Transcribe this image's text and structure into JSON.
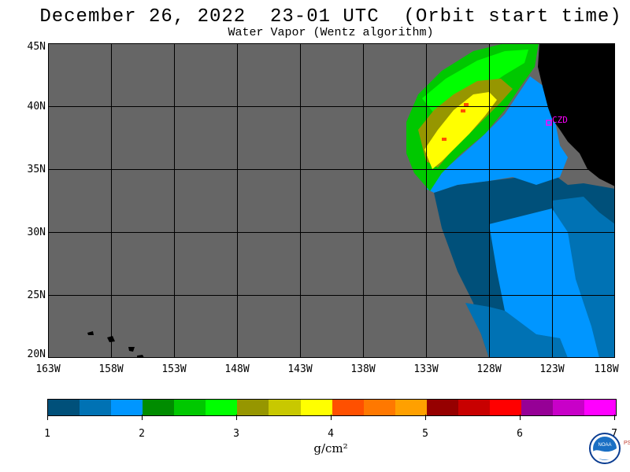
{
  "title": "December 26, 2022  23-01 UTC  (Orbit start time)",
  "subtitle": "Water Vapor (Wentz algorithm)",
  "map": {
    "lat_labels": [
      "45N",
      "40N",
      "35N",
      "30N",
      "25N",
      "20N"
    ],
    "lon_labels": [
      "163W",
      "158W",
      "153W",
      "148W",
      "143W",
      "138W",
      "133W",
      "128W",
      "123W",
      "118W"
    ],
    "station_label": "CZD",
    "colors": {
      "no_data": "#666666",
      "land": "#000000",
      "grid": "#000000",
      "station": "#ff00ff"
    }
  },
  "colorbar": {
    "colors": [
      "#00507a",
      "#0072b4",
      "#0096ff",
      "#008c00",
      "#00c800",
      "#00ff00",
      "#969600",
      "#c8c800",
      "#ffff00",
      "#ff5000",
      "#ff7800",
      "#ffa000",
      "#960000",
      "#c80000",
      "#ff0000",
      "#960096",
      "#c800c8",
      "#ff00ff"
    ],
    "tick_labels": [
      "1",
      "2",
      "3",
      "4",
      "5",
      "6",
      "7"
    ],
    "unit": "g/cm²"
  },
  "logo": {
    "name": "NOAA",
    "side_text": "PSL"
  }
}
